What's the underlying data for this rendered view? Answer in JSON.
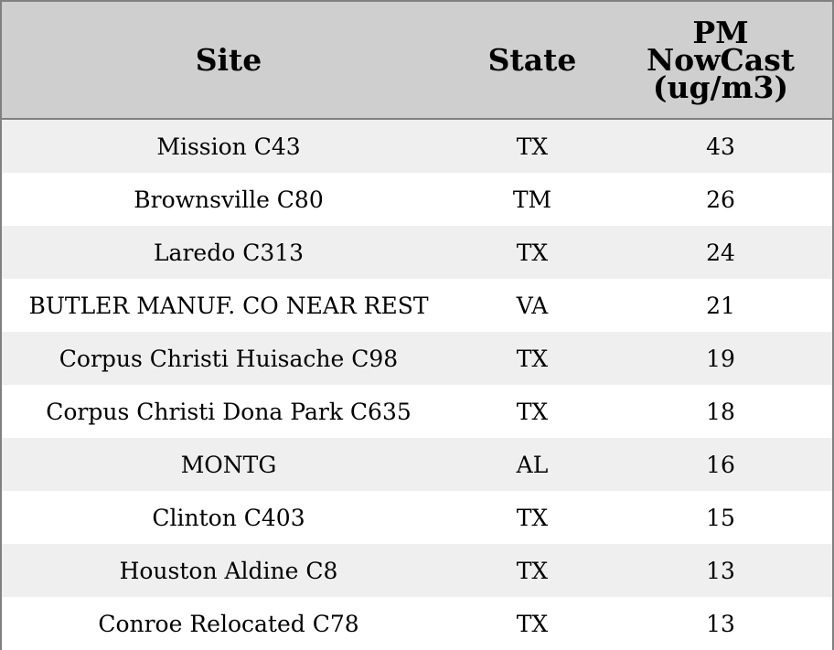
{
  "colors": {
    "header_bg": "#cfcfcf",
    "row_alt_bg": "#efefef",
    "row_bg": "#ffffff",
    "border": "#808080"
  },
  "chart_data": {
    "type": "table",
    "columns": [
      "Site",
      "State",
      "PM NowCast (ug/m3)"
    ],
    "header_lines": {
      "site": "Site",
      "state": "State",
      "pm": [
        "PM",
        "NowCast",
        "(ug/m3)"
      ]
    },
    "rows": [
      {
        "site": "Mission C43",
        "state": "TX",
        "pm": 43
      },
      {
        "site": "Brownsville C80",
        "state": "TM",
        "pm": 26
      },
      {
        "site": "Laredo C313",
        "state": "TX",
        "pm": 24
      },
      {
        "site": "BUTLER MANUF. CO NEAR REST",
        "state": "VA",
        "pm": 21
      },
      {
        "site": "Corpus Christi Huisache C98",
        "state": "TX",
        "pm": 19
      },
      {
        "site": "Corpus Christi Dona Park C635",
        "state": "TX",
        "pm": 18
      },
      {
        "site": "MONTG",
        "state": "AL",
        "pm": 16
      },
      {
        "site": "Clinton C403",
        "state": "TX",
        "pm": 15
      },
      {
        "site": "Houston Aldine C8",
        "state": "TX",
        "pm": 13
      },
      {
        "site": "Conroe Relocated C78",
        "state": "TX",
        "pm": 13
      }
    ]
  }
}
